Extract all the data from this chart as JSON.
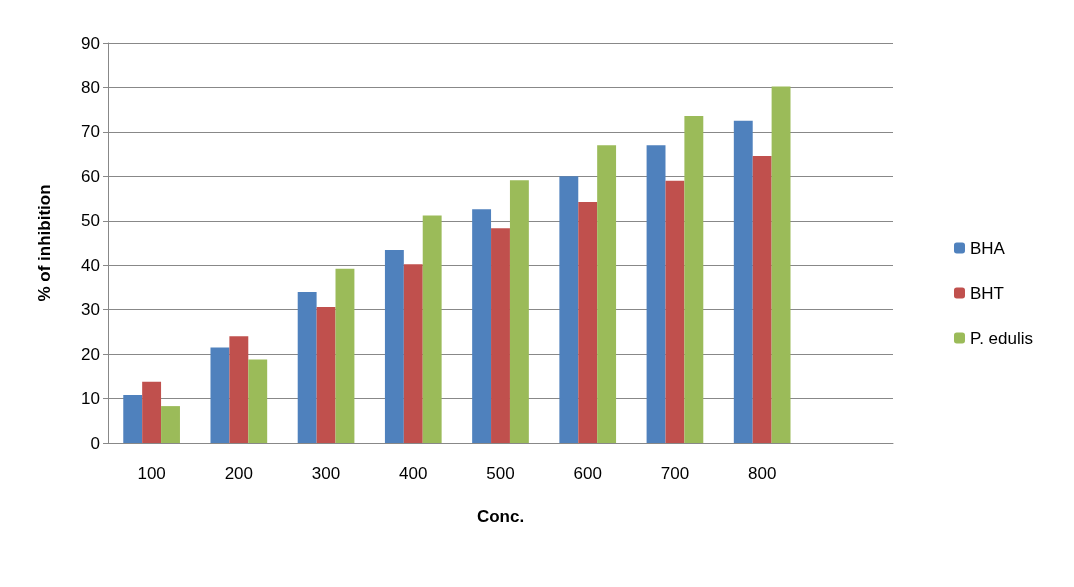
{
  "chart_data": {
    "type": "bar",
    "xlabel": "Conc.",
    "ylabel": "% of inhibition",
    "categories": [
      "100",
      "200",
      "300",
      "400",
      "500",
      "600",
      "700",
      "800",
      null
    ],
    "series": [
      {
        "name": "BHA",
        "color": "#4f81bd",
        "values": [
          10.8,
          21.5,
          34,
          43.4,
          52.6,
          60,
          67,
          72.5,
          null
        ]
      },
      {
        "name": "BHT",
        "color": "#c0504d",
        "values": [
          13.8,
          24,
          30.6,
          40.2,
          48.3,
          54.2,
          59,
          64.6,
          null
        ]
      },
      {
        "name": "P. edulis",
        "color": "#9bbb59",
        "values": [
          8.3,
          18.8,
          39.2,
          51.2,
          59.1,
          67,
          73.6,
          80.2,
          null
        ]
      }
    ],
    "ylim": [
      0,
      90
    ],
    "yticks": [
      0,
      10,
      20,
      30,
      40,
      50,
      60,
      70,
      80,
      90
    ],
    "grid": "y",
    "legend": "right"
  }
}
